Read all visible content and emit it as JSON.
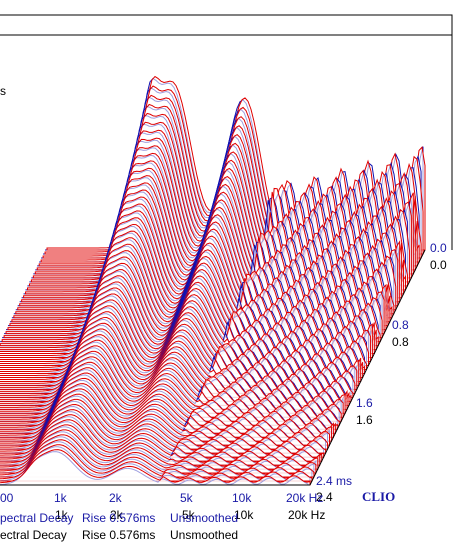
{
  "blue_plot": {
    "time_labels": [
      "0.0",
      "0.8",
      "1.6",
      "2.4 ms"
    ],
    "freq_labels": [
      "00",
      "1k",
      "2k",
      "5k",
      "10k",
      "20k Hz"
    ],
    "legend": [
      "pectral Decay",
      "Rise 0.576ms",
      "Unsmoothed"
    ]
  },
  "black_plot": {
    "time_labels": [
      "0.0",
      "0.8",
      "1.6",
      "2.4"
    ],
    "freq_labels": [
      "1k",
      "2k",
      "5k",
      "10k",
      "20k Hz"
    ],
    "legend": [
      "ectral Decay",
      "Rise 0.576ms",
      "Unsmoothed"
    ]
  },
  "brand": "CLIO",
  "left_label": "s"
}
